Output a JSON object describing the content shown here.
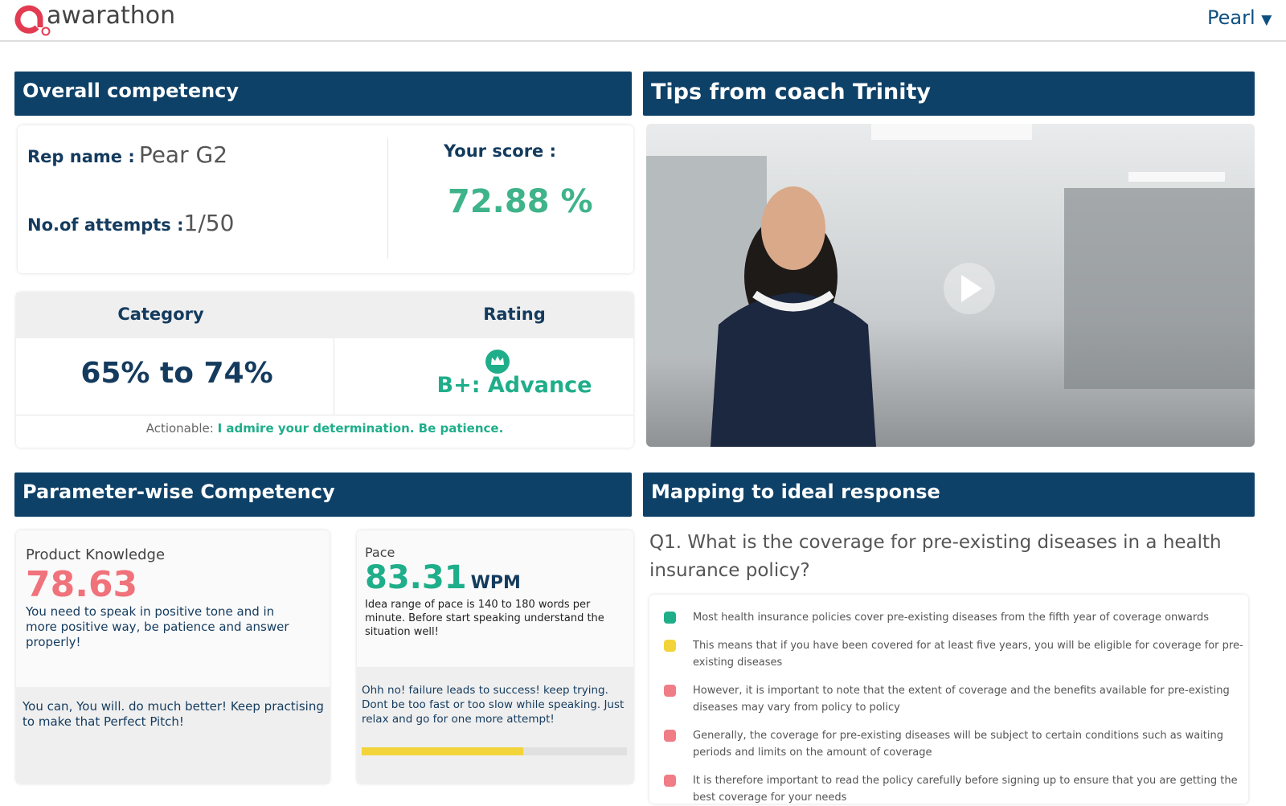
{
  "header": {
    "brand": "awarathon",
    "user": "Pearl"
  },
  "overall": {
    "title": "Overall competency",
    "rep_label": "Rep name :",
    "rep_name": "Pear G2",
    "attempts_label": "No.of attempts :",
    "attempts": "1/50",
    "score_label": "Your score :",
    "score": "72.88 %",
    "category_header": "Category",
    "rating_header": "Rating",
    "category": "65% to 74%",
    "rating": "B+: Advance",
    "actionable_label": "Actionable:",
    "actionable": "I admire your determination. Be patience."
  },
  "tips": {
    "title": "Tips from coach Trinity"
  },
  "parameters": {
    "title": "Parameter-wise Competency",
    "cards": [
      {
        "name": "Product Knowledge",
        "score": "78.63",
        "note": "You need to speak in positive tone and in more positive way, be patience and answer properly!",
        "feedback": "You can, You will. do much better! Keep practising to make that Perfect Pitch!"
      },
      {
        "name": "Pace",
        "score": "83.31",
        "unit": "WPM",
        "note": "Idea range of pace is 140 to 180 words per minute. Before start speaking understand the situation well!",
        "feedback": "Ohh no! failure leads to success! keep trying. Dont be too fast or too slow while speaking. Just relax and go for one more attempt!",
        "progress": 61
      }
    ]
  },
  "mapping": {
    "title": "Mapping to ideal response",
    "question": "Q1. What is the coverage for pre-existing diseases in a health insurance policy?",
    "items": [
      {
        "color": "#1fae8a",
        "text": "Most health insurance policies cover pre-existing diseases from the fifth year of coverage onwards"
      },
      {
        "color": "#f2d43a",
        "text": "This means that if you have been covered for at least five years, you will be eligible for coverage for pre-existing diseases"
      },
      {
        "color": "#f07c86",
        "text": "However, it is important to note that the extent of coverage and the benefits available for pre-existing diseases may vary from policy to policy"
      },
      {
        "color": "#f07c86",
        "text": "Generally, the coverage for pre-existing diseases will be subject to certain conditions such as waiting periods and limits on the amount of coverage"
      },
      {
        "color": "#f07c86",
        "text": "It is therefore important to read the policy carefully before signing up to ensure that you are getting the best coverage for your needs"
      }
    ]
  }
}
